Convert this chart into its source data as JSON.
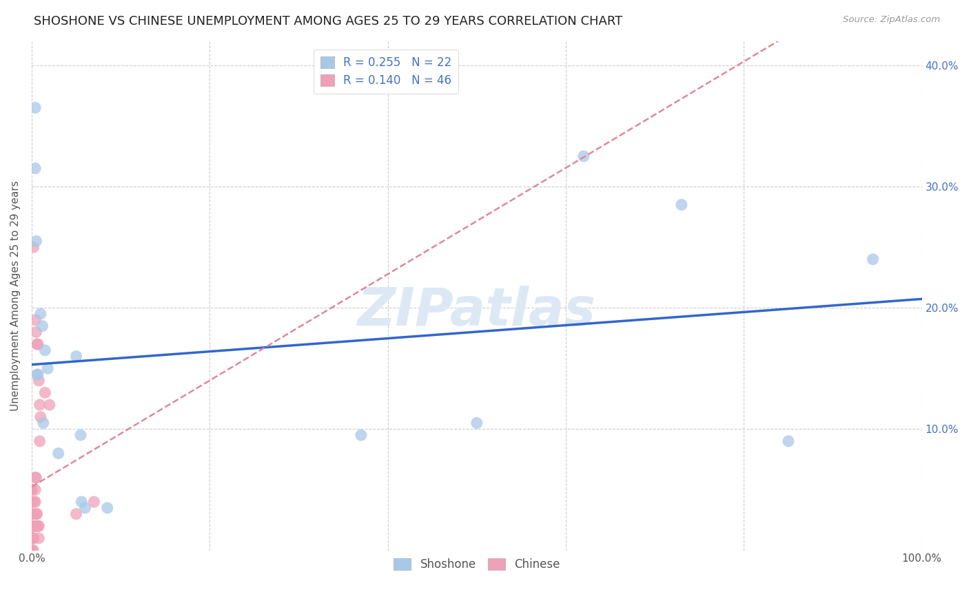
{
  "title": "SHOSHONE VS CHINESE UNEMPLOYMENT AMONG AGES 25 TO 29 YEARS CORRELATION CHART",
  "source": "Source: ZipAtlas.com",
  "ylabel": "Unemployment Among Ages 25 to 29 years",
  "xlim": [
    0,
    1.0
  ],
  "ylim": [
    0,
    0.42
  ],
  "shoshone_R": 0.255,
  "shoshone_N": 22,
  "chinese_R": 0.14,
  "chinese_N": 46,
  "shoshone_color": "#a8c8e8",
  "chinese_color": "#f0a0b8",
  "shoshone_line_color": "#3366cc",
  "chinese_line_color": "#e08898",
  "shoshone_x": [
    0.004,
    0.004,
    0.005,
    0.006,
    0.007,
    0.01,
    0.012,
    0.013,
    0.015,
    0.018,
    0.03,
    0.05,
    0.055,
    0.056,
    0.06,
    0.085,
    0.37,
    0.5,
    0.62,
    0.73,
    0.85,
    0.945
  ],
  "shoshone_y": [
    0.365,
    0.315,
    0.255,
    0.145,
    0.145,
    0.195,
    0.185,
    0.105,
    0.165,
    0.15,
    0.08,
    0.16,
    0.095,
    0.04,
    0.035,
    0.035,
    0.095,
    0.105,
    0.325,
    0.285,
    0.09,
    0.24
  ],
  "chinese_x": [
    0.0,
    0.0,
    0.0,
    0.0,
    0.0,
    0.0,
    0.0,
    0.0,
    0.0,
    0.0,
    0.0,
    0.0,
    0.0,
    0.0,
    0.0,
    0.002,
    0.002,
    0.002,
    0.002,
    0.002,
    0.003,
    0.003,
    0.003,
    0.004,
    0.004,
    0.004,
    0.004,
    0.005,
    0.005,
    0.005,
    0.005,
    0.006,
    0.006,
    0.006,
    0.007,
    0.007,
    0.008,
    0.008,
    0.008,
    0.009,
    0.009,
    0.01,
    0.015,
    0.02,
    0.05,
    0.07
  ],
  "chinese_y": [
    0.0,
    0.0,
    0.0,
    0.0,
    0.01,
    0.01,
    0.01,
    0.02,
    0.02,
    0.03,
    0.03,
    0.04,
    0.04,
    0.05,
    0.05,
    0.0,
    0.01,
    0.01,
    0.02,
    0.25,
    0.02,
    0.03,
    0.04,
    0.04,
    0.05,
    0.06,
    0.19,
    0.02,
    0.03,
    0.06,
    0.18,
    0.02,
    0.03,
    0.17,
    0.02,
    0.17,
    0.01,
    0.02,
    0.14,
    0.09,
    0.12,
    0.11,
    0.13,
    0.12,
    0.03,
    0.04
  ],
  "watermark_text": "ZIPatlas",
  "background_color": "#ffffff",
  "grid_color": "#cccccc",
  "title_fontsize": 13,
  "axis_label_fontsize": 11,
  "tick_fontsize": 11,
  "legend_fontsize": 12
}
